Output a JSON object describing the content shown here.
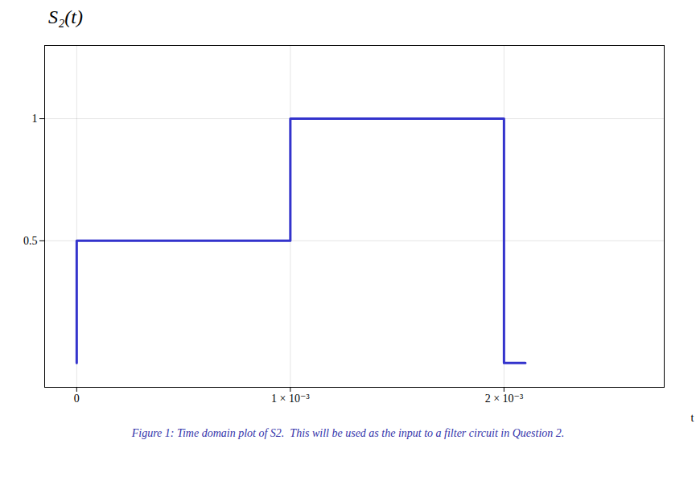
{
  "chart_data": {
    "type": "line",
    "title": "S₂(t)",
    "xlabel": "t",
    "caption": "Figure 1: Time domain plot of S2.  This will be used as the input to a filter circuit in Question 2.",
    "x": [
      0,
      0,
      0.001,
      0.001,
      0.002,
      0.002,
      0.0021
    ],
    "values": [
      0,
      0.5,
      0.5,
      1.0,
      1.0,
      0.0,
      0.0
    ],
    "color": "#3333cc",
    "xlim": [
      -0.00015,
      0.00275
    ],
    "ylim": [
      -0.1,
      1.3
    ],
    "xticks": [
      0,
      {
        "value": 0.001,
        "label": "1 × 10⁻³"
      },
      {
        "value": 0.002,
        "label": "2 × 10⁻³"
      }
    ],
    "yticks": [
      0.5,
      1
    ],
    "grid": true
  }
}
